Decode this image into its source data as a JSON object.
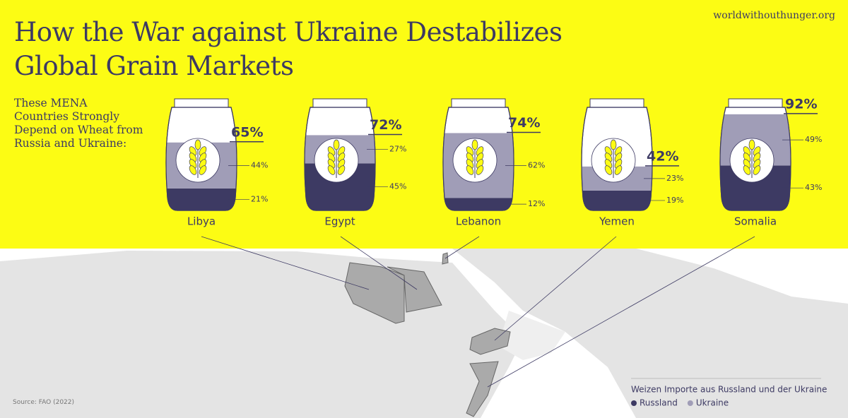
{
  "source_site": "worldwithouthunger.org",
  "chart_data": {
    "type": "stacked-sack",
    "title": "How the War against Ukraine Destabilizes Global Grain Markets",
    "subtitle": "These MENA Countries Strongly Depend on Wheat from Russia and Ukraine:",
    "categories": [
      "Libya",
      "Egypt",
      "Lebanon",
      "Yemen",
      "Somalia"
    ],
    "totals": [
      65,
      72,
      74,
      42,
      92
    ],
    "total_labels": [
      "65%",
      "72%",
      "74%",
      "42%",
      "92%"
    ],
    "series": [
      {
        "name": "Russland",
        "color": "#3d3a63",
        "values": [
          21,
          45,
          12,
          19,
          43
        ],
        "value_labels": [
          "21%",
          "45%",
          "12%",
          "19%",
          "43%"
        ]
      },
      {
        "name": "Ukraine",
        "color": "#a09db7",
        "values": [
          44,
          27,
          62,
          23,
          49
        ],
        "value_labels": [
          "44%",
          "27%",
          "62%",
          "23%",
          "49%"
        ]
      }
    ],
    "ylim": [
      0,
      100
    ],
    "legend_title": "Weizen Importe aus Russland und der Ukraine",
    "source": "Source: FAO (2022)"
  }
}
